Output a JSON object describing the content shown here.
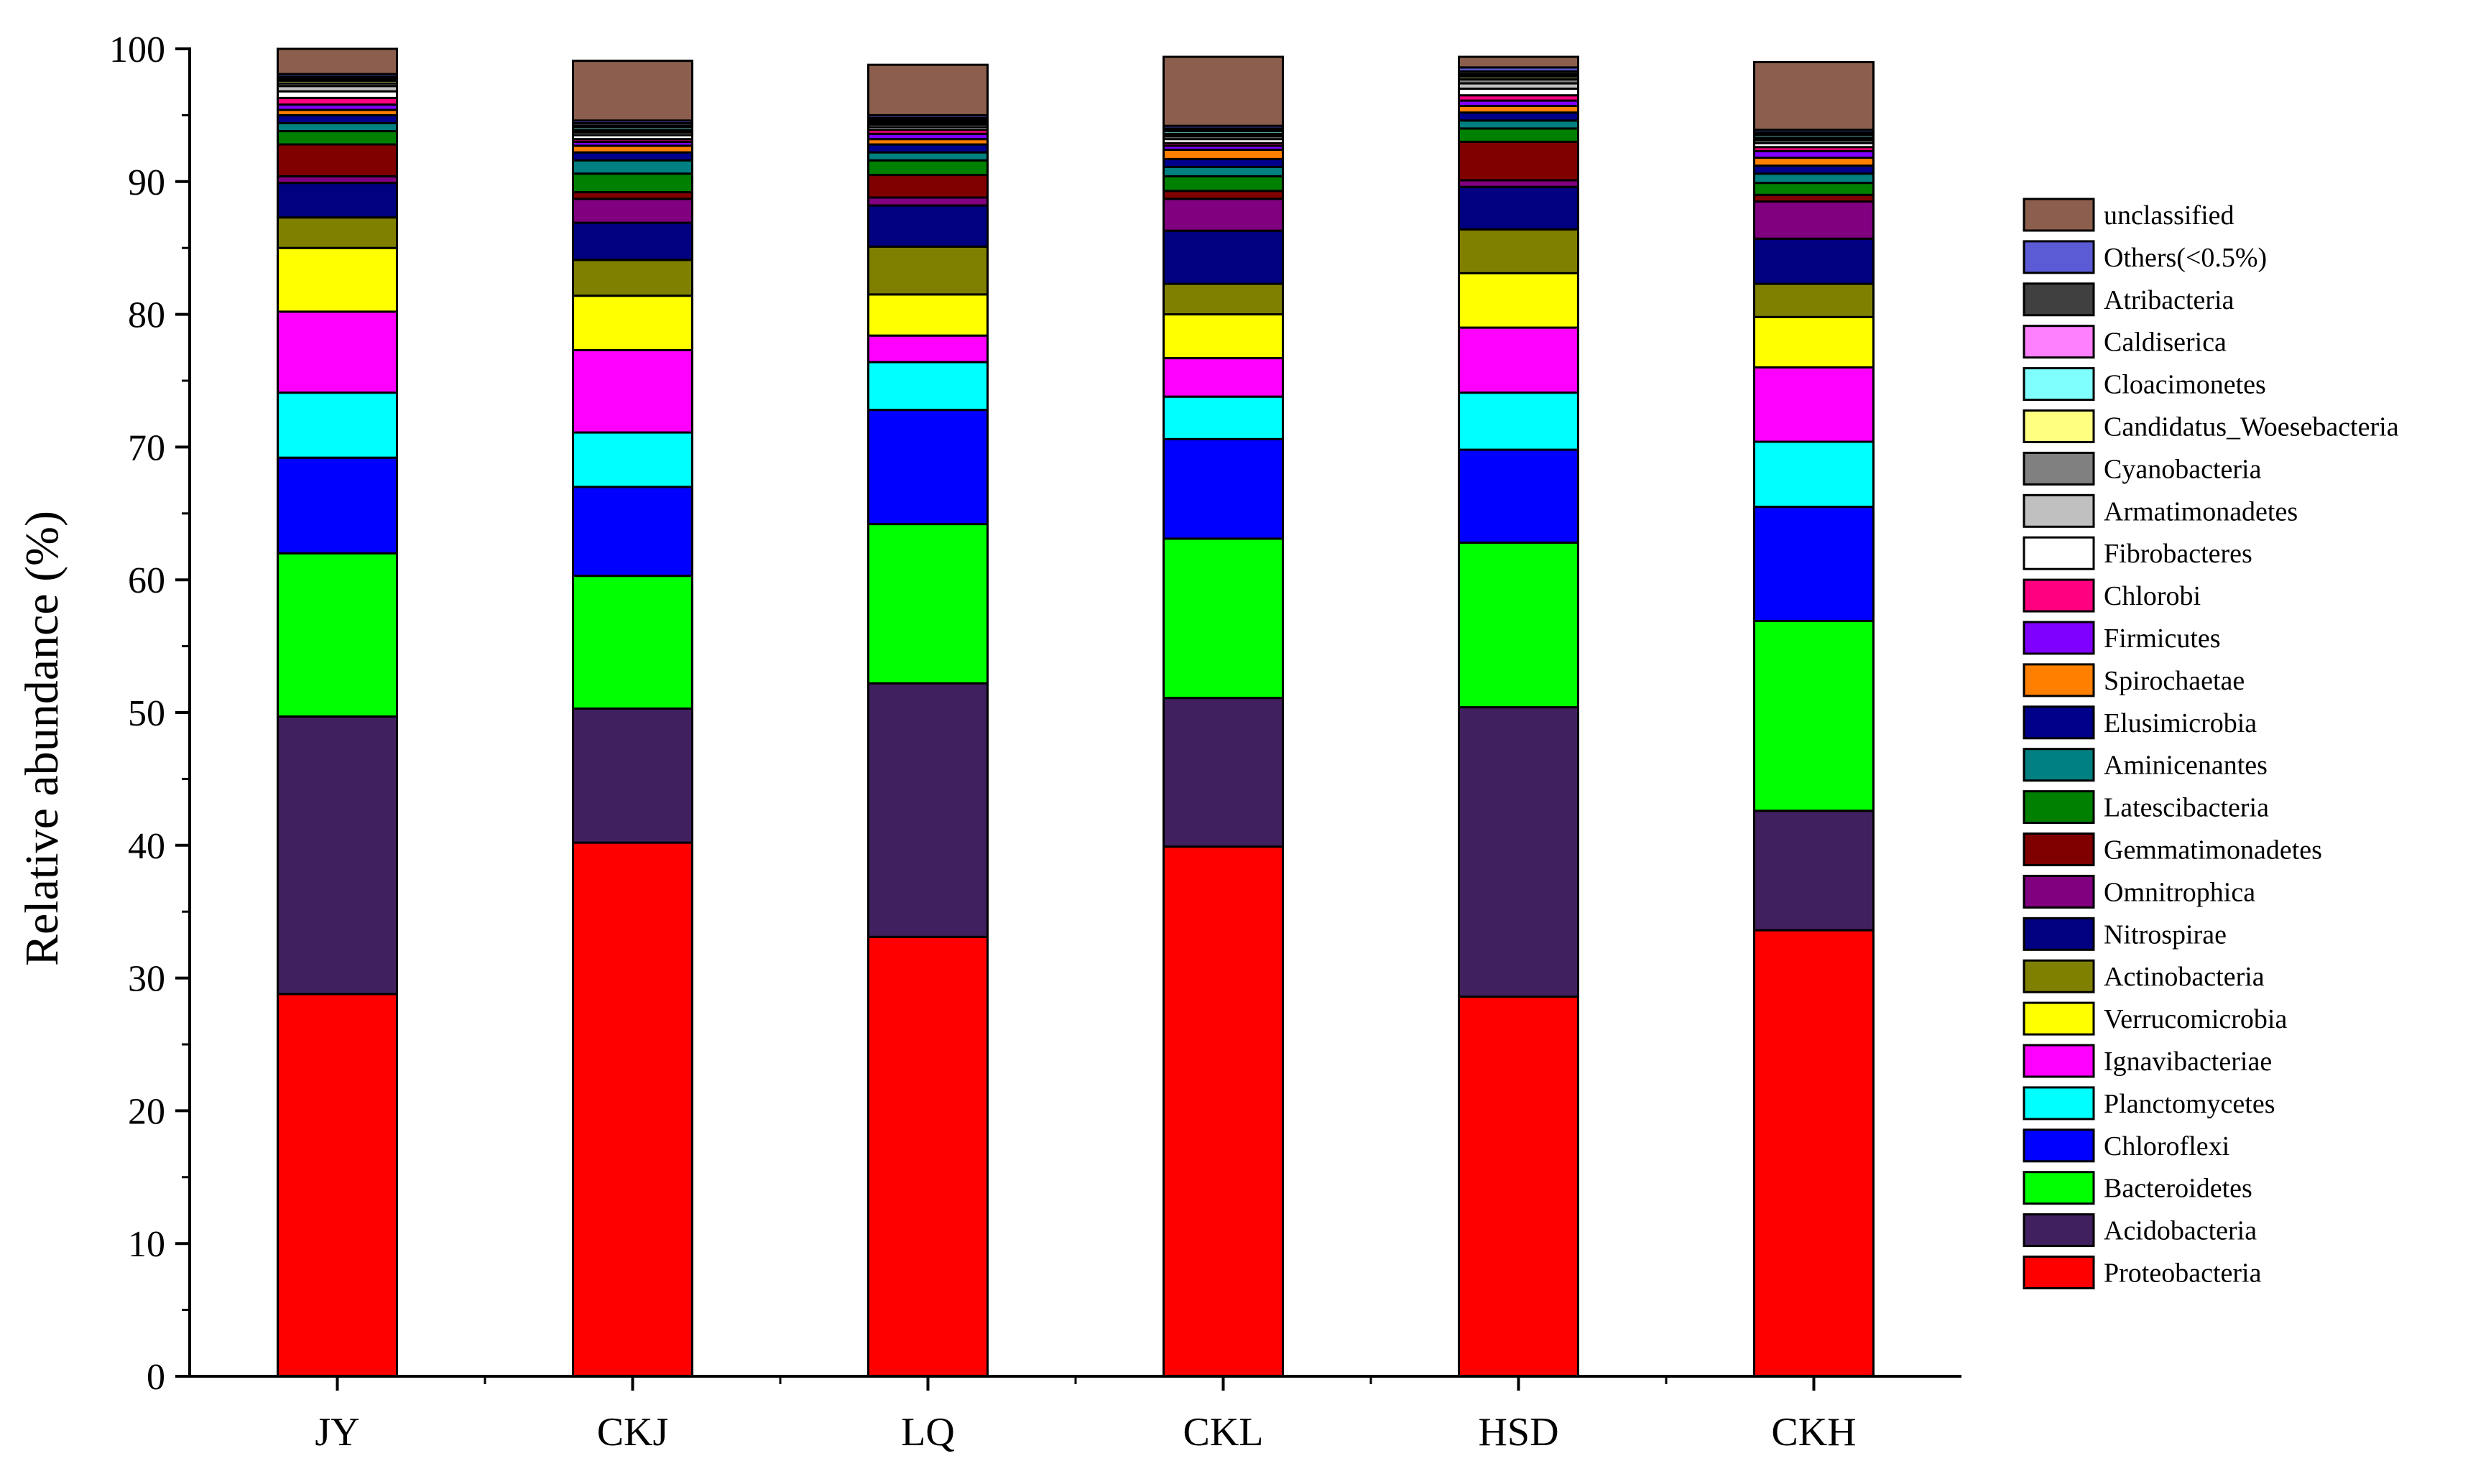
{
  "chart_data": {
    "type": "stacked-bar",
    "title": "",
    "xlabel": "",
    "ylabel": "Relative abundance (%)",
    "ylim": [
      0,
      100
    ],
    "yticks": [
      0,
      10,
      20,
      30,
      40,
      50,
      60,
      70,
      80,
      90,
      100
    ],
    "categories": [
      "JY",
      "CKJ",
      "LQ",
      "CKL",
      "HSD",
      "CKH"
    ],
    "series": [
      {
        "name": "Proteobacteria",
        "color": "#FF0000",
        "values": [
          28.8,
          40.2,
          33.1,
          39.9,
          28.6,
          33.6
        ]
      },
      {
        "name": "Acidobacteria",
        "color": "#41205F",
        "values": [
          20.9,
          10.1,
          19.1,
          11.2,
          21.8,
          9.0
        ]
      },
      {
        "name": "Bacteroidetes",
        "color": "#00FF00",
        "values": [
          12.3,
          10.0,
          12.0,
          12.0,
          12.4,
          14.3
        ]
      },
      {
        "name": "Chloroflexi",
        "color": "#0000FF",
        "values": [
          7.2,
          6.7,
          8.6,
          7.5,
          7.0,
          8.6
        ]
      },
      {
        "name": "Planctomycetes",
        "color": "#00FFFF",
        "values": [
          4.9,
          4.1,
          3.6,
          3.2,
          4.3,
          4.9
        ]
      },
      {
        "name": "Ignavibacteriae",
        "color": "#FF00FF",
        "values": [
          6.1,
          6.2,
          2.0,
          2.9,
          4.9,
          5.6
        ]
      },
      {
        "name": "Verrucomicrobia",
        "color": "#FFFF00",
        "values": [
          4.8,
          4.1,
          3.1,
          3.3,
          4.1,
          3.8
        ]
      },
      {
        "name": "Actinobacteria",
        "color": "#808000",
        "values": [
          2.3,
          2.7,
          3.6,
          2.3,
          3.3,
          2.5
        ]
      },
      {
        "name": "Nitrospirae",
        "color": "#000080",
        "values": [
          2.6,
          2.8,
          3.1,
          4.0,
          3.2,
          3.4
        ]
      },
      {
        "name": "Omnitrophica",
        "color": "#800080",
        "values": [
          0.5,
          1.8,
          0.6,
          2.4,
          0.5,
          2.8
        ]
      },
      {
        "name": "Gemmatimonadetes",
        "color": "#800000",
        "values": [
          2.4,
          0.5,
          1.7,
          0.6,
          2.9,
          0.5
        ]
      },
      {
        "name": "Latescibacteria",
        "color": "#008000",
        "values": [
          1.0,
          1.4,
          1.1,
          1.1,
          1.0,
          0.9
        ]
      },
      {
        "name": "Aminicenantes",
        "color": "#008080",
        "values": [
          0.6,
          1.0,
          0.6,
          0.7,
          0.6,
          0.7
        ]
      },
      {
        "name": "Elusimicrobia",
        "color": "#00008B",
        "values": [
          0.6,
          0.6,
          0.6,
          0.6,
          0.6,
          0.6
        ]
      },
      {
        "name": "Spirochaetae",
        "color": "#FF8000",
        "values": [
          0.4,
          0.5,
          0.4,
          0.7,
          0.5,
          0.6
        ]
      },
      {
        "name": "Firmicutes",
        "color": "#8000FF",
        "values": [
          0.4,
          0.3,
          0.4,
          0.3,
          0.4,
          0.5
        ]
      },
      {
        "name": "Chlorobi",
        "color": "#FF0080",
        "values": [
          0.5,
          0.2,
          0.3,
          0.2,
          0.4,
          0.3
        ]
      },
      {
        "name": "Fibrobacteres",
        "color": "#FFFFFF",
        "values": [
          0.5,
          0.3,
          0.2,
          0.3,
          0.5,
          0.3
        ]
      },
      {
        "name": "Armatimonadetes",
        "color": "#C0C0C0",
        "values": [
          0.4,
          0.2,
          0.2,
          0.2,
          0.4,
          0.2
        ]
      },
      {
        "name": "Cyanobacteria",
        "color": "#808080",
        "values": [
          0.2,
          0.1,
          0.1,
          0.1,
          0.3,
          0.1
        ]
      },
      {
        "name": "Candidatus_Woesebacteria",
        "color": "#FFFF80",
        "values": [
          0.2,
          0.1,
          0.1,
          0.1,
          0.2,
          0.1
        ]
      },
      {
        "name": "Cloacimonetes",
        "color": "#80FFFF",
        "values": [
          0.1,
          0.2,
          0.1,
          0.2,
          0.1,
          0.2
        ]
      },
      {
        "name": "Caldiserica",
        "color": "#FF80FF",
        "values": [
          0.1,
          0.1,
          0.1,
          0.1,
          0.1,
          0.1
        ]
      },
      {
        "name": "Atribacteria",
        "color": "#404040",
        "values": [
          0.1,
          0.2,
          0.1,
          0.1,
          0.2,
          0.1
        ]
      },
      {
        "name": "Others(<0.5%)",
        "color": "#5B5BD6",
        "values": [
          0.2,
          0.2,
          0.2,
          0.2,
          0.3,
          0.2
        ]
      },
      {
        "name": "unclassified",
        "color": "#8B5E4E",
        "values": [
          1.9,
          4.5,
          3.8,
          5.2,
          0.8,
          5.1
        ]
      }
    ],
    "legend_order": [
      "unclassified",
      "Others(<0.5%)",
      "Atribacteria",
      "Caldiserica",
      "Cloacimonetes",
      "Candidatus_Woesebacteria",
      "Cyanobacteria",
      "Armatimonadetes",
      "Fibrobacteres",
      "Chlorobi",
      "Firmicutes",
      "Spirochaetae",
      "Elusimicrobia",
      "Aminicenantes",
      "Latescibacteria",
      "Gemmatimonadetes",
      "Omnitrophica",
      "Nitrospirae",
      "Actinobacteria",
      "Verrucomicrobia",
      "Ignavibacteriae",
      "Planctomycetes",
      "Chloroflexi",
      "Bacteroidetes",
      "Acidobacteria",
      "Proteobacteria"
    ],
    "legend_position": "right"
  }
}
